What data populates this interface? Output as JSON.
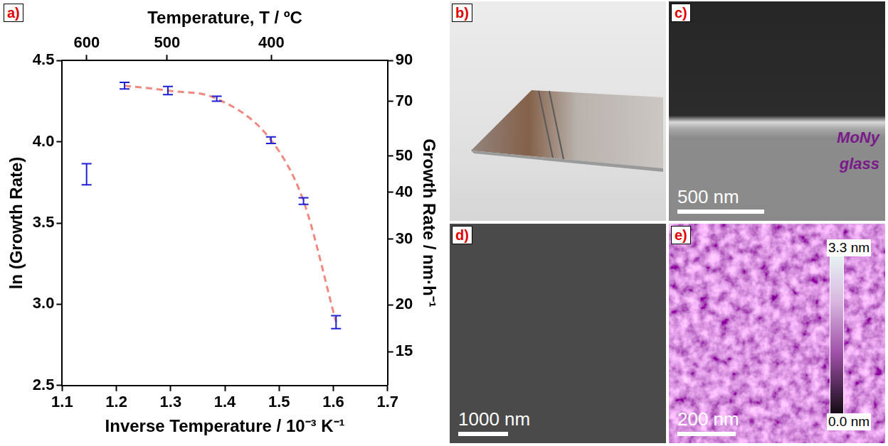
{
  "chart_data": {
    "panel": "a)",
    "type": "scatter",
    "x_label": "Inverse Temperature / 10⁻³ K⁻¹",
    "x2_label": "Temperature, T / ºC",
    "y_label": "ln (Growth Rate)",
    "y2_label": "Growth Rate / nm·h⁻¹",
    "xlim": [
      1.1,
      1.7
    ],
    "xticks": [
      1.1,
      1.2,
      1.3,
      1.4,
      1.5,
      1.6,
      1.7
    ],
    "x2lim": [
      635.9,
      315.1
    ],
    "x2ticks": [
      600,
      500,
      400
    ],
    "ylim": [
      2.5,
      4.5
    ],
    "yticks": [
      2.5,
      {
        "value": 3,
        "label": "3.0"
      },
      3.5,
      {
        "value": 4,
        "label": "4.0"
      },
      4.5
    ],
    "y2lim": [
      12.18,
      90.02
    ],
    "y2ticks": [
      15,
      20,
      30,
      40,
      50,
      70,
      90
    ],
    "log": "y2",
    "grid": false,
    "series": [
      {
        "type": "scatter",
        "marker": "errorbar",
        "color": "#1f1fd6",
        "x": [
          1.145,
          1.215,
          1.295,
          1.385,
          1.485,
          1.545,
          1.605
        ],
        "values": [
          3.8,
          4.345,
          4.315,
          4.265,
          4.01,
          3.635,
          2.89
        ],
        "errors": [
          0.065,
          0.02,
          0.025,
          0.015,
          0.02,
          0.02,
          0.04
        ]
      },
      {
        "type": "line",
        "line_style": "dashed",
        "color": "#f08a80",
        "x": [
          1.215,
          1.295,
          1.385,
          1.485,
          1.545,
          1.605
        ],
        "values": [
          4.345,
          4.315,
          4.265,
          4.01,
          3.635,
          2.89
        ]
      }
    ]
  },
  "images": [
    {
      "panel": "b)"
    },
    {
      "panel": "c)",
      "scale_bar": "500 nm",
      "texts": [
        "MoNy",
        "glass"
      ]
    },
    {
      "panel": "d)",
      "scale_bar": "1000 nm"
    },
    {
      "panel": "e)",
      "scale_bar": "200 nm",
      "colorbar": {
        "range": [
          0,
          3.3
        ],
        "ticks": [
          {
            "value": 3.3,
            "label": "3.3 nm"
          },
          {
            "value": 0,
            "label": "0.0 nm"
          }
        ]
      }
    }
  ]
}
